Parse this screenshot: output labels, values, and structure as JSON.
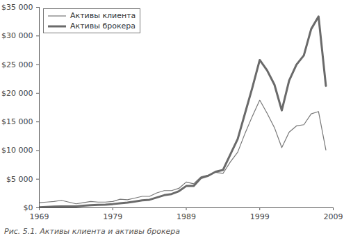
{
  "chart_data": {
    "type": "line",
    "title": "Рис. 5.1. Активы клиента и активы брокера",
    "x": [
      1969,
      1970,
      1971,
      1972,
      1973,
      1974,
      1975,
      1976,
      1977,
      1978,
      1979,
      1980,
      1981,
      1982,
      1983,
      1984,
      1985,
      1986,
      1987,
      1988,
      1989,
      1990,
      1991,
      1992,
      1993,
      1994,
      1995,
      1996,
      1997,
      1998,
      1999,
      2000,
      2001,
      2002,
      2003,
      2004,
      2005,
      2006,
      2007,
      2008
    ],
    "series": [
      {
        "name": "Активы клиента",
        "color": "#777777",
        "line_style": "solid",
        "values": [
          900,
          1000,
          1100,
          1300,
          1000,
          700,
          900,
          1100,
          1000,
          1000,
          1100,
          1500,
          1400,
          1700,
          2000,
          2000,
          2600,
          3000,
          3000,
          3400,
          4500,
          4200,
          5400,
          5700,
          6200,
          6000,
          8000,
          9700,
          13000,
          16000,
          18800,
          16500,
          14000,
          10500,
          13200,
          14300,
          14500,
          16400,
          16800,
          10100
        ]
      },
      {
        "name": "Активы брокера",
        "color": "#6a6a6a",
        "line_style": "solid",
        "values": [
          100,
          150,
          200,
          250,
          250,
          250,
          350,
          450,
          500,
          550,
          650,
          800,
          900,
          1100,
          1300,
          1400,
          1800,
          2200,
          2400,
          2900,
          3800,
          3800,
          5200,
          5600,
          6300,
          6600,
          9300,
          12000,
          16500,
          21000,
          25800,
          24000,
          21500,
          17000,
          22200,
          25000,
          26600,
          31200,
          33400,
          21300
        ]
      }
    ],
    "xlim": [
      1969,
      2009
    ],
    "xticks": [
      1969,
      1979,
      1989,
      1999,
      2009
    ],
    "ylim": [
      0,
      35000
    ],
    "yticks": [
      {
        "value": 0,
        "label": "$0"
      },
      {
        "value": 5000,
        "label": "$5 000"
      },
      {
        "value": 10000,
        "label": "$10 000"
      },
      {
        "value": 15000,
        "label": "$15 000"
      },
      {
        "value": 20000,
        "label": "$20 000"
      },
      {
        "value": 25000,
        "label": "$25 000"
      },
      {
        "value": 30000,
        "label": "$30 000"
      },
      {
        "value": 35000,
        "label": "$35 000"
      }
    ],
    "grid": false,
    "legend": "top-left"
  }
}
